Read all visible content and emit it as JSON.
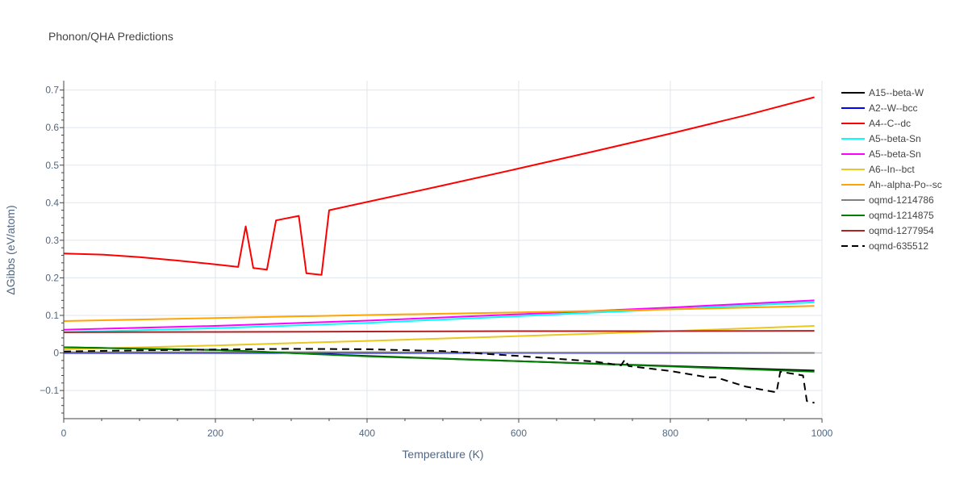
{
  "chart_data": {
    "type": "line",
    "title": "Phonon/QHA Predictions",
    "xlabel": "Temperature (K)",
    "ylabel": "ΔGibbs (eV/atom)",
    "xlim": [
      0,
      1000
    ],
    "ylim": [
      -0.175,
      0.725
    ],
    "xticks": [
      0,
      200,
      400,
      600,
      800,
      1000
    ],
    "yticks": [
      -0.1,
      0,
      0.1,
      0.2,
      0.3,
      0.4,
      0.5,
      0.6,
      0.7
    ],
    "ytick_labels": [
      "−0.1",
      "0",
      "0.1",
      "0.2",
      "0.3",
      "0.4",
      "0.5",
      "0.6",
      "0.7"
    ],
    "grid": true,
    "legend_position": "right",
    "series": [
      {
        "name": "A15--beta-W",
        "color": "#000000",
        "dash": "solid",
        "x": [
          0,
          200,
          400,
          600,
          800,
          990
        ],
        "y": [
          0.015,
          0.008,
          -0.008,
          -0.022,
          -0.035,
          -0.047
        ]
      },
      {
        "name": "A2--W--bcc",
        "color": "#0000ff",
        "dash": "solid",
        "x": [
          0,
          200,
          400,
          600,
          800,
          990
        ],
        "y": [
          0.0,
          0.0,
          0.0,
          0.0,
          0.0,
          0.0
        ]
      },
      {
        "name": "A4--C--dc",
        "color": "#ff0000",
        "dash": "solid",
        "x": [
          0,
          50,
          100,
          150,
          200,
          230,
          240,
          250,
          268,
          280,
          310,
          320,
          340,
          350,
          400,
          500,
          600,
          700,
          800,
          900,
          990
        ],
        "y": [
          0.265,
          0.262,
          0.255,
          0.246,
          0.236,
          0.229,
          0.337,
          0.226,
          0.222,
          0.353,
          0.365,
          0.212,
          0.208,
          0.38,
          0.402,
          0.446,
          0.491,
          0.537,
          0.584,
          0.633,
          0.681
        ]
      },
      {
        "name": "A5--beta-Sn",
        "color": "#00ffff",
        "dash": "solid",
        "x": [
          0,
          200,
          400,
          600,
          800,
          990
        ],
        "y": [
          0.055,
          0.066,
          0.08,
          0.098,
          0.117,
          0.135
        ]
      },
      {
        "name": "A5--beta-Sn",
        "color": "#ff00ff",
        "dash": "solid",
        "x": [
          0,
          200,
          400,
          600,
          800,
          990
        ],
        "y": [
          0.062,
          0.072,
          0.086,
          0.103,
          0.121,
          0.14
        ]
      },
      {
        "name": "A6--In--bct",
        "color": "#ebc71f",
        "dash": "solid",
        "x": [
          0,
          200,
          400,
          600,
          800,
          990
        ],
        "y": [
          0.01,
          0.02,
          0.032,
          0.045,
          0.058,
          0.072
        ]
      },
      {
        "name": "Ah--alpha-Po--sc",
        "color": "#ffa500",
        "dash": "solid",
        "x": [
          0,
          200,
          400,
          600,
          800,
          990
        ],
        "y": [
          0.085,
          0.093,
          0.101,
          0.108,
          0.116,
          0.125
        ]
      },
      {
        "name": "oqmd-1214786",
        "color": "#808080",
        "dash": "solid",
        "x": [
          0,
          200,
          400,
          600,
          800,
          990
        ],
        "y": [
          0.002,
          0.002,
          0.002,
          0.001,
          0.001,
          0.0
        ]
      },
      {
        "name": "oqmd-1214875",
        "color": "#008000",
        "dash": "solid",
        "x": [
          0,
          200,
          400,
          600,
          800,
          990
        ],
        "y": [
          0.015,
          0.008,
          -0.009,
          -0.022,
          -0.036,
          -0.05
        ]
      },
      {
        "name": "oqmd-1277954",
        "color": "#b22222",
        "dash": "solid",
        "x": [
          0,
          200,
          400,
          600,
          800,
          990
        ],
        "y": [
          0.055,
          0.056,
          0.057,
          0.058,
          0.058,
          0.059
        ]
      },
      {
        "name": "oqmd-635512",
        "color": "#000000",
        "dash": "dash",
        "x": [
          0,
          100,
          200,
          300,
          400,
          500,
          600,
          700,
          735,
          740,
          745,
          800,
          850,
          860,
          900,
          940,
          945,
          960,
          975,
          980,
          990
        ],
        "y": [
          0.004,
          0.007,
          0.009,
          0.011,
          0.01,
          0.005,
          -0.008,
          -0.023,
          -0.033,
          -0.018,
          -0.035,
          -0.048,
          -0.065,
          -0.065,
          -0.09,
          -0.105,
          -0.05,
          -0.055,
          -0.06,
          -0.128,
          -0.133
        ]
      }
    ]
  }
}
